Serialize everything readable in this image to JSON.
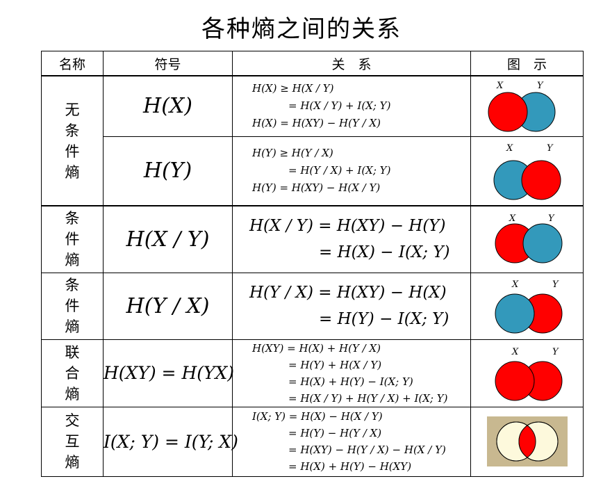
{
  "title": "各种熵之间的关系",
  "headers": {
    "name": "名称",
    "symbol": "符号",
    "relation": "关　系",
    "figure": "图　示"
  },
  "venn_labels": {
    "x": "X",
    "y": "Y"
  },
  "colors": {
    "red": "#ff0000",
    "blue": "#3399bb",
    "cream": "#fdf9dc",
    "frame": "#c8b890"
  },
  "groups": {
    "unconditional": "无条件熵",
    "conditional_1": "条件熵",
    "conditional_2": "条件熵",
    "joint": "联合熵",
    "mutual": "交互熵"
  },
  "rows": [
    {
      "symbol": "H(X)",
      "relations": [
        "H(X) ≥ H(X / Y)",
        "= H(X / Y) + I(X; Y)",
        "H(X) = H(XY) − H(Y / X)"
      ]
    },
    {
      "symbol": "H(Y)",
      "relations": [
        "H(Y) ≥ H(Y / X)",
        "= H(Y / X) + I(X; Y)",
        "H(Y) = H(XY) − H(X / Y)"
      ]
    },
    {
      "symbol": "H(X / Y)",
      "relations": [
        "H(X / Y) = H(XY) − H(Y)",
        "= H(X) − I(X; Y)"
      ]
    },
    {
      "symbol": "H(Y / X)",
      "relations": [
        "H(Y / X) = H(XY) − H(X)",
        "= H(Y) − I(X; Y)"
      ]
    },
    {
      "symbol": "H(XY) = H(YX)",
      "relations": [
        "H(XY) = H(X) + H(Y / X)",
        "= H(Y) + H(X / Y)",
        "= H(X) + H(Y) − I(X; Y)",
        "= H(X / Y) + H(Y / X) + I(X; Y)"
      ]
    },
    {
      "symbol": "I(X; Y) = I(Y; X)",
      "relations": [
        "I(X; Y) = H(X) − H(X / Y)",
        "= H(Y) − H(Y / X)",
        "= H(XY) − H(Y / X) − H(X / Y)",
        "= H(X) + H(Y) − H(XY)"
      ]
    }
  ]
}
